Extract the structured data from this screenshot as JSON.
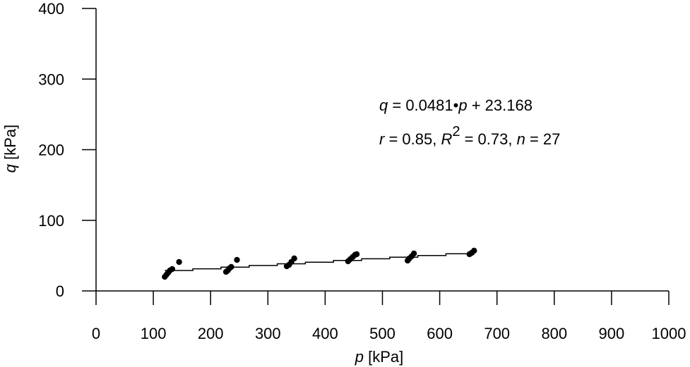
{
  "chart_data": {
    "type": "scatter",
    "xlabel": {
      "var": "p",
      "unit": " [kPa]"
    },
    "ylabel": {
      "var": "q",
      "unit": " [kPa]"
    },
    "xlim": [
      0,
      1000
    ],
    "ylim": [
      0,
      400
    ],
    "x_ticks": [
      0,
      100,
      200,
      300,
      400,
      500,
      600,
      700,
      800,
      900,
      1000
    ],
    "y_ticks": [
      0,
      100,
      200,
      300,
      400
    ],
    "grid": false,
    "legend": "none",
    "series": [
      {
        "marker": "filled-circle",
        "color": "#000000",
        "points": [
          [
            120,
            20
          ],
          [
            123,
            23
          ],
          [
            126,
            26
          ],
          [
            129,
            29
          ],
          [
            133,
            31
          ],
          [
            145,
            41
          ],
          [
            227,
            27
          ],
          [
            230,
            29
          ],
          [
            233,
            32
          ],
          [
            236,
            34
          ],
          [
            246,
            44
          ],
          [
            333,
            35
          ],
          [
            337,
            37
          ],
          [
            341,
            41
          ],
          [
            346,
            46
          ],
          [
            440,
            42
          ],
          [
            444,
            45
          ],
          [
            448,
            48
          ],
          [
            452,
            51
          ],
          [
            455,
            52
          ],
          [
            544,
            43
          ],
          [
            547,
            46
          ],
          [
            551,
            49
          ],
          [
            555,
            53
          ],
          [
            652,
            52
          ],
          [
            656,
            54
          ],
          [
            660,
            57
          ]
        ]
      }
    ],
    "trendline": {
      "slope": 0.0481,
      "intercept": 23.168,
      "x_range": [
        120,
        660
      ]
    },
    "annotations": {
      "line1": {
        "q": "q",
        "eq": " = 0.0481•",
        "p": "p",
        "rest": " + 23.168"
      },
      "line2": {
        "r": "r",
        "r_val": " = 0.85, ",
        "R": "R",
        "sup": "2",
        "r2_val": " = 0.73, ",
        "n": "n",
        "n_val": " = 27"
      }
    }
  }
}
